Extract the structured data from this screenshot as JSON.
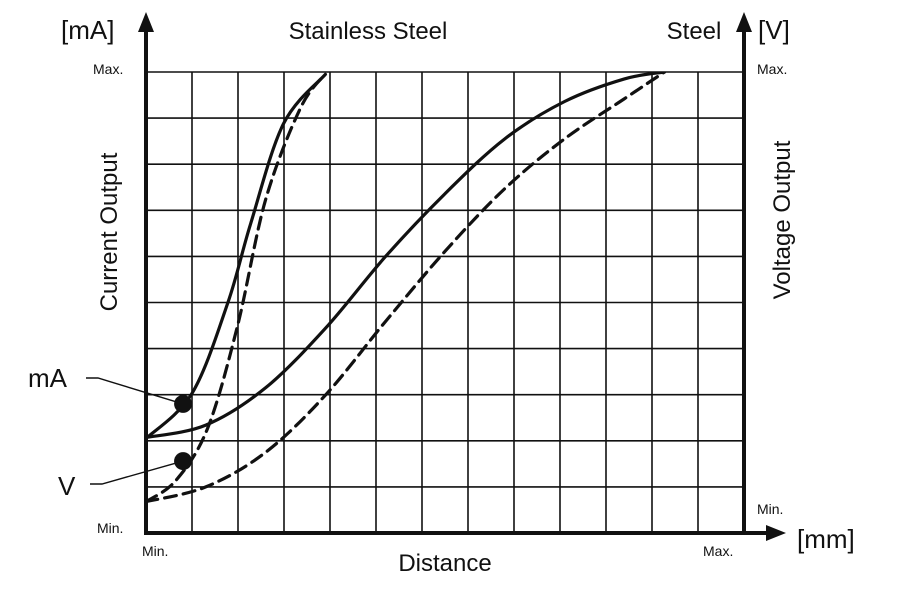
{
  "chart_data": {
    "type": "line",
    "title_left": "Stainless Steel",
    "title_right": "Steel",
    "left_unit": "[mA]",
    "right_unit": "[V]",
    "x_unit": "[mm]",
    "xlabel": "Distance",
    "ylabel_left": "Current Output",
    "ylabel_right": "Voltage Output",
    "x_min_label": "Min.",
    "x_max_label": "Max.",
    "y_left_min_label": "Min.",
    "y_left_max_label": "Max.",
    "y_right_min_label": "Min.",
    "y_right_max_label": "Max.",
    "grid": true,
    "series": [
      {
        "marker": "mA",
        "material": "Stainless Steel",
        "style": "solid",
        "points": [
          [
            0.0,
            0.205
          ],
          [
            0.077,
            0.303
          ],
          [
            0.137,
            0.5
          ],
          [
            0.175,
            0.671
          ],
          [
            0.23,
            0.888
          ],
          [
            0.3,
            0.995
          ]
        ]
      },
      {
        "marker": "V",
        "material": "Stainless Steel",
        "style": "dashed",
        "points": [
          [
            0.0,
            0.068
          ],
          [
            0.05,
            0.114
          ],
          [
            0.103,
            0.227
          ],
          [
            0.153,
            0.449
          ],
          [
            0.2,
            0.723
          ],
          [
            0.258,
            0.921
          ],
          [
            0.3,
            0.996
          ]
        ]
      },
      {
        "marker": "mA",
        "material": "Steel",
        "style": "solid",
        "points": [
          [
            0.0,
            0.207
          ],
          [
            0.1,
            0.234
          ],
          [
            0.2,
            0.315
          ],
          [
            0.3,
            0.444
          ],
          [
            0.4,
            0.599
          ],
          [
            0.5,
            0.736
          ],
          [
            0.6,
            0.855
          ],
          [
            0.7,
            0.936
          ],
          [
            0.8,
            0.985
          ],
          [
            0.867,
            1.0
          ]
        ]
      },
      {
        "marker": "V",
        "material": "Steel",
        "style": "dashed",
        "points": [
          [
            0.0,
            0.068
          ],
          [
            0.1,
            0.1
          ],
          [
            0.2,
            0.175
          ],
          [
            0.3,
            0.299
          ],
          [
            0.4,
            0.458
          ],
          [
            0.5,
            0.611
          ],
          [
            0.6,
            0.747
          ],
          [
            0.7,
            0.855
          ],
          [
            0.8,
            0.942
          ],
          [
            0.867,
            1.0
          ]
        ]
      }
    ],
    "markers": [
      {
        "label": "mA",
        "x": 0.062,
        "y": 0.28
      },
      {
        "label": "V",
        "x": 0.062,
        "y": 0.156
      }
    ]
  }
}
